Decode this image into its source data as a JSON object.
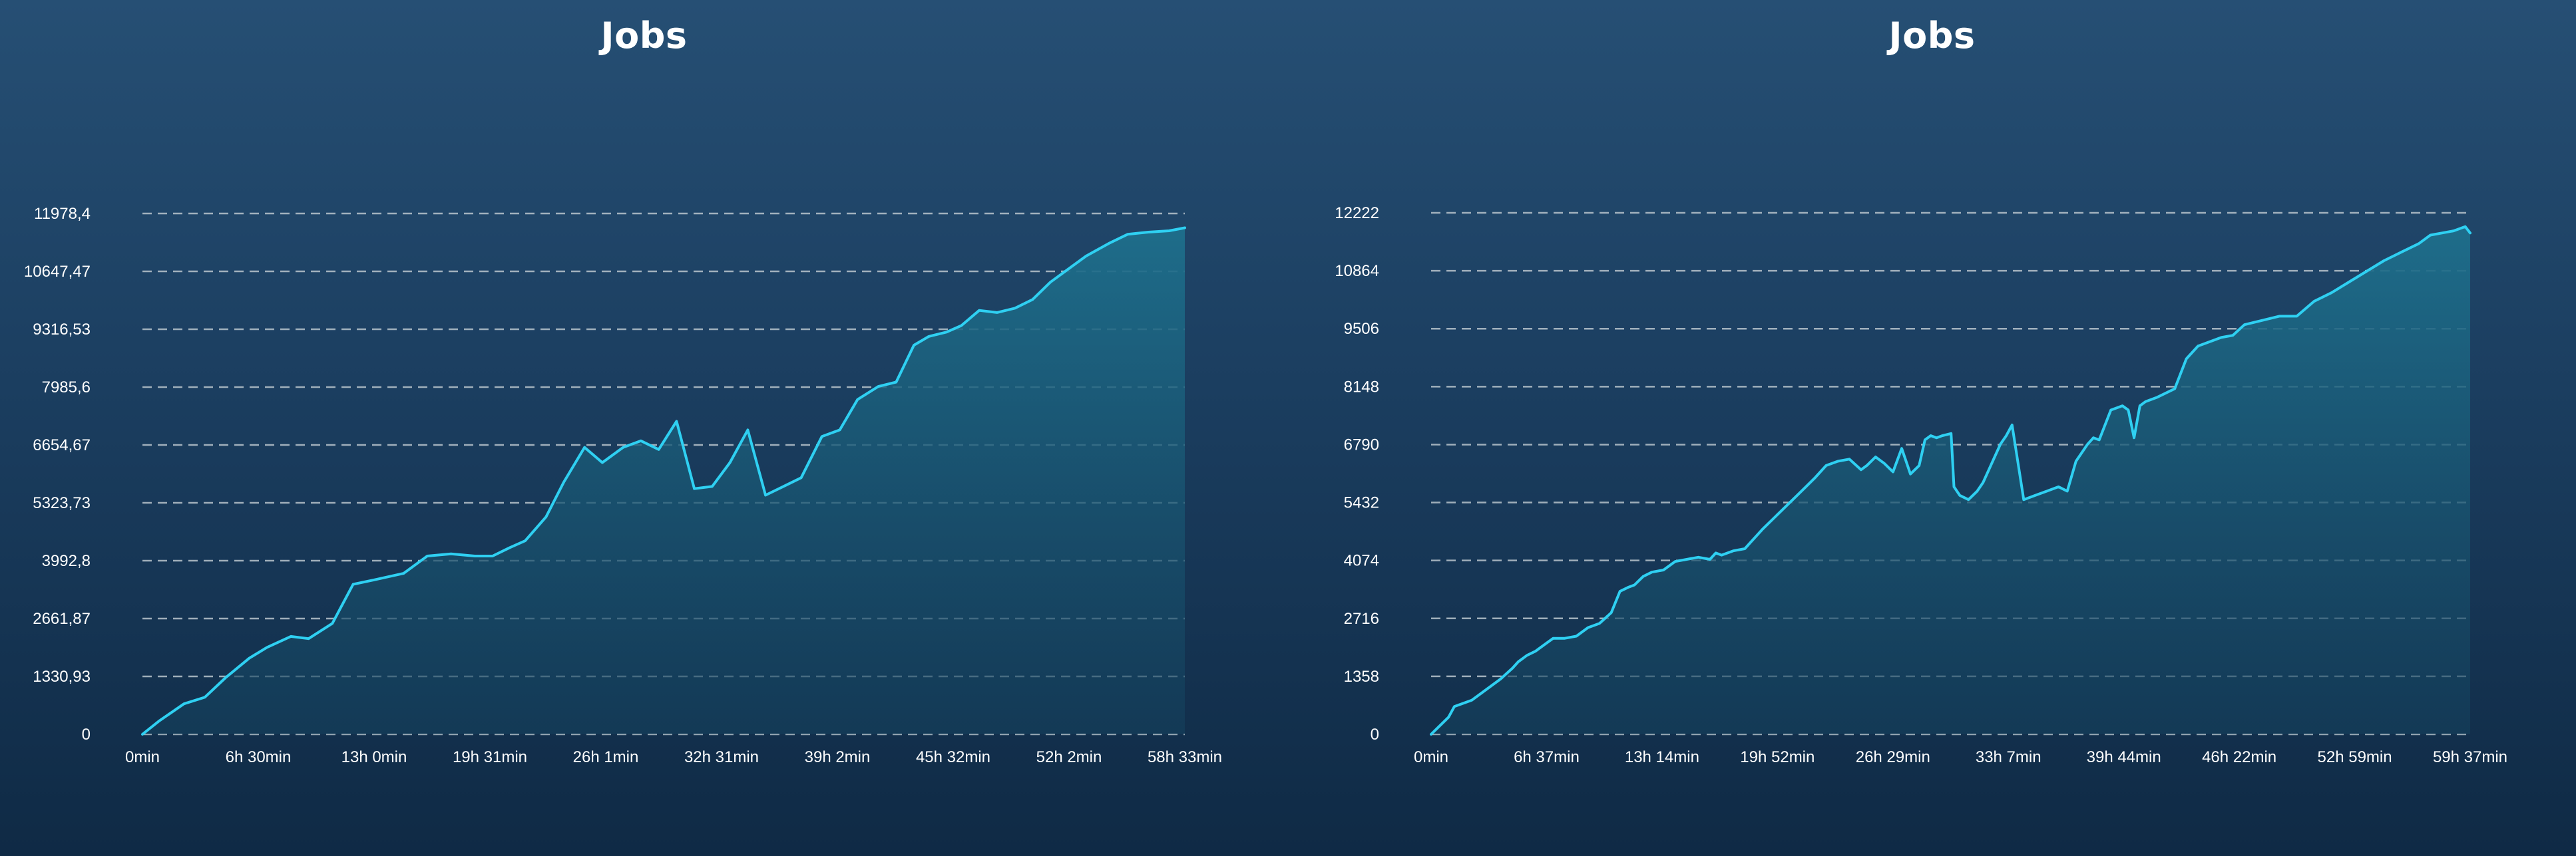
{
  "colors": {
    "line": "#2fd0f2",
    "area_top": "#1e6f8c",
    "area_bottom": "#14405c",
    "grid": "#b8c4cc",
    "text": "#ffffff"
  },
  "chart_data": [
    {
      "type": "area",
      "title": "Jobs",
      "xlabel": "",
      "ylabel": "",
      "x_ticks": [
        "0min",
        "6h 30min",
        "13h 0min",
        "19h 31min",
        "26h 1min",
        "32h 31min",
        "39h 2min",
        "45h 32min",
        "52h 2min",
        "58h 33min"
      ],
      "y_ticks": [
        "0",
        "1330,93",
        "2661,87",
        "3992,8",
        "5323,73",
        "6654,67",
        "7985,6",
        "9316,53",
        "10647,47",
        "11978,4"
      ],
      "xlim_minutes": [
        0,
        3513
      ],
      "ylim": [
        0,
        11978.4
      ],
      "grid": true,
      "series": [
        {
          "x_minutes": [
            0,
            55,
            140,
            210,
            280,
            360,
            420,
            500,
            560,
            640,
            710,
            780,
            880,
            960,
            1040,
            1120,
            1180,
            1240,
            1290,
            1360,
            1420,
            1490,
            1550,
            1620,
            1680,
            1740,
            1800,
            1860,
            1920,
            1980,
            2040,
            2100,
            2160,
            2220,
            2290,
            2350,
            2410,
            2480,
            2540,
            2600,
            2650,
            2710,
            2760,
            2820,
            2880,
            2940,
            3000,
            3060,
            3120,
            3180,
            3260,
            3320,
            3390,
            3460,
            3513
          ],
          "values": [
            0,
            300,
            700,
            850,
            1300,
            1750,
            2000,
            2250,
            2200,
            2550,
            3450,
            3550,
            3700,
            4100,
            4150,
            4100,
            4100,
            4300,
            4450,
            5000,
            5800,
            6600,
            6250,
            6600,
            6750,
            6550,
            7200,
            5650,
            5700,
            6250,
            7000,
            5500,
            5700,
            5900,
            6850,
            7000,
            7700,
            8000,
            8100,
            8950,
            9150,
            9250,
            9400,
            9750,
            9700,
            9800,
            10000,
            10400,
            10700,
            11000,
            11300,
            11500,
            11550,
            11580,
            11650
          ]
        }
      ]
    },
    {
      "type": "area",
      "title": "Jobs",
      "xlabel": "",
      "ylabel": "",
      "x_ticks": [
        "0min",
        "6h 37min",
        "13h 14min",
        "19h 52min",
        "26h 29min",
        "33h 7min",
        "39h 44min",
        "46h 22min",
        "52h 59min",
        "59h 37min"
      ],
      "y_ticks": [
        "0",
        "1358",
        "2716",
        "4074",
        "5432",
        "6790",
        "8148",
        "9506",
        "10864",
        "12222"
      ],
      "xlim_minutes": [
        0,
        3577
      ],
      "ylim": [
        0,
        12222
      ],
      "grid": true,
      "series": [
        {
          "x_minutes": [
            0,
            60,
            80,
            140,
            180,
            240,
            280,
            300,
            330,
            360,
            390,
            420,
            460,
            500,
            540,
            580,
            620,
            650,
            680,
            700,
            730,
            760,
            800,
            840,
            880,
            920,
            960,
            980,
            1000,
            1040,
            1080,
            1100,
            1140,
            1200,
            1260,
            1290,
            1320,
            1360,
            1400,
            1440,
            1480,
            1500,
            1530,
            1560,
            1590,
            1620,
            1650,
            1680,
            1700,
            1720,
            1740,
            1760,
            1790,
            1800,
            1820,
            1850,
            1880,
            1900,
            1920,
            1940,
            1960,
            1980,
            2000,
            2040,
            2080,
            2120,
            2160,
            2190,
            2220,
            2260,
            2280,
            2300,
            2340,
            2380,
            2400,
            2420,
            2440,
            2460,
            2500,
            2560,
            2600,
            2620,
            2640,
            2680,
            2720,
            2760,
            2800,
            2860,
            2920,
            2980,
            3040,
            3100,
            3160,
            3220,
            3280,
            3340,
            3400,
            3440,
            3480,
            3520,
            3560,
            3577
          ],
          "values": [
            0,
            400,
            650,
            800,
            1000,
            1300,
            1550,
            1700,
            1850,
            1950,
            2100,
            2250,
            2250,
            2300,
            2500,
            2600,
            2850,
            3350,
            3450,
            3500,
            3700,
            3800,
            3850,
            4050,
            4100,
            4150,
            4100,
            4250,
            4200,
            4300,
            4350,
            4500,
            4800,
            5200,
            5600,
            5800,
            6000,
            6300,
            6400,
            6450,
            6200,
            6300,
            6500,
            6350,
            6150,
            6700,
            6100,
            6300,
            6900,
            7000,
            6950,
            7000,
            7050,
            5800,
            5600,
            5500,
            5700,
            5900,
            6200,
            6500,
            6800,
            7000,
            7250,
            5500,
            5600,
            5700,
            5800,
            5700,
            6400,
            6800,
            6950,
            6900,
            7600,
            7700,
            7600,
            6950,
            7700,
            7800,
            7900,
            8100,
            8800,
            8950,
            9100,
            9200,
            9300,
            9350,
            9600,
            9700,
            9800,
            9800,
            10150,
            10350,
            10600,
            10850,
            11100,
            11300,
            11500,
            11700,
            11750,
            11800,
            11900,
            11750
          ]
        }
      ]
    }
  ]
}
